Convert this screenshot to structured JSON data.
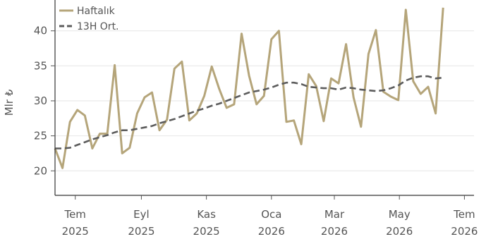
{
  "chart_data": {
    "type": "line",
    "title": "",
    "xlabel": "",
    "ylabel": "Mlr ₺",
    "xlim": [
      "2025-06-12",
      "2026-07-10"
    ],
    "ylim": [
      16.5,
      44.0
    ],
    "yticks": [
      20,
      25,
      30,
      35,
      40
    ],
    "xticks": [
      {
        "date": "2025-07-01",
        "label1": "Tem",
        "label2": "2025"
      },
      {
        "date": "2025-09-01",
        "label1": "Eyl",
        "label2": "2025"
      },
      {
        "date": "2025-11-01",
        "label1": "Kas",
        "label2": "2025"
      },
      {
        "date": "2026-01-01",
        "label1": "Oca",
        "label2": "2026"
      },
      {
        "date": "2026-03-01",
        "label1": "Mar",
        "label2": "2026"
      },
      {
        "date": "2026-05-01",
        "label1": "May",
        "label2": "2026"
      },
      {
        "date": "2026-07-01",
        "label1": "Tem",
        "label2": "2026"
      }
    ],
    "grid": "horizontal",
    "legend": "top-left",
    "series": [
      {
        "name": "Haftalık",
        "color": "#b5a57a",
        "style": "solid",
        "points": [
          [
            "2025-06-12",
            23.2
          ],
          [
            "2025-06-19",
            20.4
          ],
          [
            "2025-06-26",
            27.0
          ],
          [
            "2025-07-03",
            28.7
          ],
          [
            "2025-07-10",
            27.9
          ],
          [
            "2025-07-17",
            23.2
          ],
          [
            "2025-07-24",
            25.3
          ],
          [
            "2025-07-31",
            25.3
          ],
          [
            "2025-08-07",
            35.1
          ],
          [
            "2025-08-14",
            22.5
          ],
          [
            "2025-08-21",
            23.3
          ],
          [
            "2025-08-28",
            28.2
          ],
          [
            "2025-09-04",
            30.5
          ],
          [
            "2025-09-11",
            31.2
          ],
          [
            "2025-09-18",
            25.8
          ],
          [
            "2025-09-25",
            27.3
          ],
          [
            "2025-10-02",
            34.6
          ],
          [
            "2025-10-09",
            35.6
          ],
          [
            "2025-10-16",
            27.2
          ],
          [
            "2025-10-23",
            28.2
          ],
          [
            "2025-10-30",
            30.7
          ],
          [
            "2025-11-06",
            34.9
          ],
          [
            "2025-11-13",
            31.7
          ],
          [
            "2025-11-20",
            29.0
          ],
          [
            "2025-11-27",
            29.5
          ],
          [
            "2025-12-04",
            39.6
          ],
          [
            "2025-12-11",
            33.6
          ],
          [
            "2025-12-18",
            29.5
          ],
          [
            "2025-12-25",
            30.7
          ],
          [
            "2026-01-01",
            38.8
          ],
          [
            "2026-01-08",
            40.0
          ],
          [
            "2026-01-15",
            27.0
          ],
          [
            "2026-01-22",
            27.2
          ],
          [
            "2026-01-29",
            23.8
          ],
          [
            "2026-02-05",
            33.8
          ],
          [
            "2026-02-12",
            32.1
          ],
          [
            "2026-02-19",
            27.1
          ],
          [
            "2026-02-26",
            33.2
          ],
          [
            "2026-03-05",
            32.5
          ],
          [
            "2026-03-12",
            38.1
          ],
          [
            "2026-03-19",
            30.5
          ],
          [
            "2026-03-26",
            26.3
          ],
          [
            "2026-04-02",
            36.7
          ],
          [
            "2026-04-09",
            40.1
          ],
          [
            "2026-04-16",
            31.3
          ],
          [
            "2026-04-23",
            30.6
          ],
          [
            "2026-04-30",
            30.1
          ],
          [
            "2026-05-07",
            43.0
          ],
          [
            "2026-05-14",
            32.8
          ],
          [
            "2026-05-21",
            31.0
          ],
          [
            "2026-05-28",
            32.0
          ],
          [
            "2026-06-04",
            28.2
          ],
          [
            "2026-06-11",
            43.3
          ]
        ]
      },
      {
        "name": "13H Ort.",
        "color": "#5c5c5c",
        "style": "dashed",
        "points": [
          [
            "2025-06-12",
            23.2
          ],
          [
            "2025-06-19",
            23.2
          ],
          [
            "2025-06-26",
            23.3
          ],
          [
            "2025-07-03",
            23.7
          ],
          [
            "2025-07-10",
            24.1
          ],
          [
            "2025-07-17",
            24.5
          ],
          [
            "2025-07-24",
            24.8
          ],
          [
            "2025-07-31",
            25.1
          ],
          [
            "2025-08-07",
            25.5
          ],
          [
            "2025-08-14",
            25.8
          ],
          [
            "2025-08-21",
            25.8
          ],
          [
            "2025-08-28",
            26.0
          ],
          [
            "2025-09-04",
            26.2
          ],
          [
            "2025-09-11",
            26.4
          ],
          [
            "2025-09-18",
            26.8
          ],
          [
            "2025-09-25",
            27.1
          ],
          [
            "2025-10-02",
            27.4
          ],
          [
            "2025-10-09",
            27.8
          ],
          [
            "2025-10-16",
            28.2
          ],
          [
            "2025-10-23",
            28.6
          ],
          [
            "2025-10-30",
            28.9
          ],
          [
            "2025-11-06",
            29.3
          ],
          [
            "2025-11-13",
            29.6
          ],
          [
            "2025-11-20",
            30.0
          ],
          [
            "2025-11-27",
            30.4
          ],
          [
            "2025-12-04",
            30.8
          ],
          [
            "2025-12-11",
            31.2
          ],
          [
            "2025-12-18",
            31.4
          ],
          [
            "2025-12-25",
            31.6
          ],
          [
            "2026-01-01",
            31.9
          ],
          [
            "2026-01-08",
            32.3
          ],
          [
            "2026-01-15",
            32.6
          ],
          [
            "2026-01-22",
            32.6
          ],
          [
            "2026-01-29",
            32.4
          ],
          [
            "2026-02-05",
            32.0
          ],
          [
            "2026-02-12",
            31.9
          ],
          [
            "2026-02-19",
            31.8
          ],
          [
            "2026-02-26",
            31.8
          ],
          [
            "2026-03-05",
            31.6
          ],
          [
            "2026-03-12",
            31.9
          ],
          [
            "2026-03-19",
            31.8
          ],
          [
            "2026-03-26",
            31.6
          ],
          [
            "2026-04-02",
            31.5
          ],
          [
            "2026-04-09",
            31.4
          ],
          [
            "2026-04-16",
            31.5
          ],
          [
            "2026-04-23",
            31.8
          ],
          [
            "2026-04-30",
            32.2
          ],
          [
            "2026-05-07",
            32.9
          ],
          [
            "2026-05-14",
            33.3
          ],
          [
            "2026-05-21",
            33.5
          ],
          [
            "2026-05-28",
            33.5
          ],
          [
            "2026-06-04",
            33.2
          ],
          [
            "2026-06-11",
            33.3
          ]
        ]
      }
    ]
  }
}
